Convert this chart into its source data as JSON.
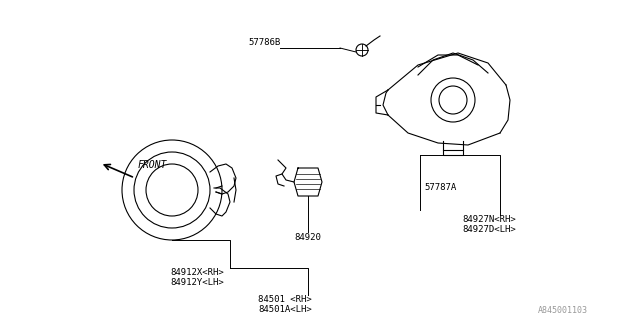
{
  "bg_color": "#ffffff",
  "line_color": "#000000",
  "text_color": "#000000",
  "watermark": "A845001103",
  "labels": {
    "part_57786B": "57786B",
    "part_57787A": "57787A",
    "part_84920": "84920",
    "part_84912X": "84912X<RH>",
    "part_84912Y": "84912Y<LH>",
    "part_84501": "84501 <RH>",
    "part_84501A": "84501A<LH>",
    "part_84927N": "84927N<RH>",
    "part_84927D": "84927D<LH>",
    "front": "FRONT"
  }
}
